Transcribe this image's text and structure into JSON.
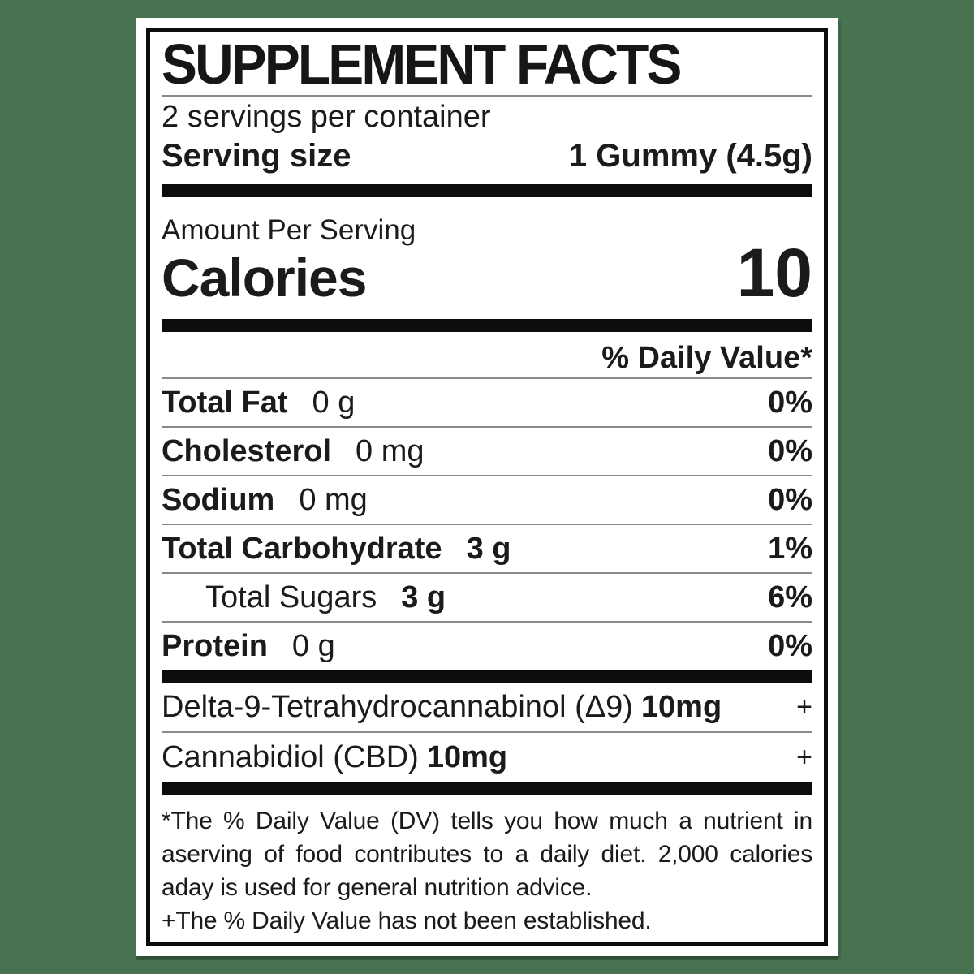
{
  "colors": {
    "page_background": "#487351",
    "label_background": "#ffffff",
    "text": "#1b1b1b",
    "thick_bar": "#0d0d0d",
    "thin_rule": "#8a8a8a"
  },
  "label": {
    "title": "SUPPLEMENT FACTS",
    "servings_per_container": "2 servings per container",
    "serving_size_label": "Serving size",
    "serving_size_value": "1 Gummy (4.5g)",
    "amount_per_serving_label": "Amount Per Serving",
    "calories_label": "Calories",
    "calories_value": "10",
    "daily_value_header": "% Daily Value*",
    "nutrients": [
      {
        "name": "Total Fat",
        "amount": "0 g",
        "dv": "0%"
      },
      {
        "name": "Cholesterol",
        "amount": "0 mg",
        "dv": "0%"
      },
      {
        "name": "Sodium",
        "amount": "0 mg",
        "dv": "0%"
      },
      {
        "name": "Total Carbohydrate",
        "amount": "3 g",
        "dv": "1%"
      },
      {
        "name": "Total Sugars",
        "amount": "3 g",
        "dv": "6%"
      },
      {
        "name": "Protein",
        "amount": "0 g",
        "dv": "0%"
      }
    ],
    "cannabinoids": [
      {
        "name": "Delta-9-Tetrahydrocannabinol (Δ9)",
        "amount": "10mg",
        "dv": "+"
      },
      {
        "name": "Cannabidiol (CBD)",
        "amount": "10mg",
        "dv": "+"
      }
    ],
    "footnotes": [
      "*The % Daily Value (DV) tells you how much a nutrient in aserving of food contributes to a daily diet. 2,000 calories aday is used for general nutrition advice.",
      "+The % Daily Value has not been established."
    ]
  }
}
